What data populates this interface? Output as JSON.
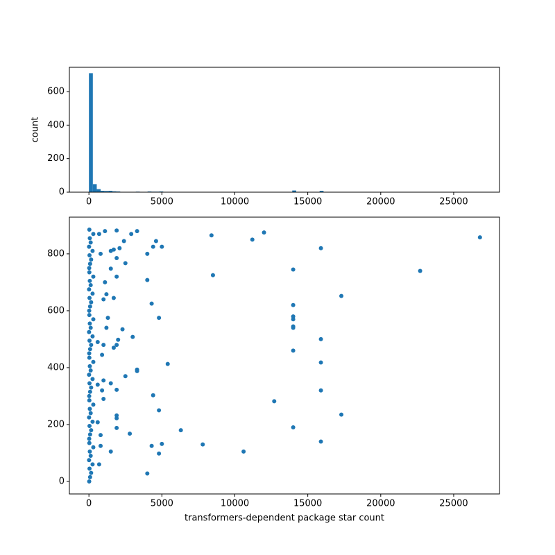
{
  "chart_data": [
    {
      "type": "histogram",
      "ylabel": "count",
      "color": "#1f77b4",
      "bins": [
        0,
        268,
        536,
        804,
        1072,
        1340,
        1608,
        1876,
        2144,
        2412,
        2680,
        2948,
        3216,
        3484,
        3752,
        4020,
        4288,
        4556,
        4824,
        5092,
        5360,
        5628,
        5896,
        6164,
        6432,
        6700,
        6968,
        7236,
        7504,
        7772,
        8040,
        8308,
        8576,
        8844,
        9112,
        9380,
        9648,
        9916,
        10184,
        10452,
        10720,
        10988,
        11256,
        11524,
        11792,
        12060,
        12328,
        12596,
        12864,
        13132,
        13400,
        13668,
        13936,
        14204,
        14472,
        14740,
        15008,
        15276,
        15544,
        15812,
        16080,
        16348,
        16616,
        16884,
        17152,
        17420,
        17688,
        17956,
        18224,
        18492,
        18760,
        19028,
        19296,
        19564,
        19832,
        20100,
        20368,
        20636,
        20904,
        21172,
        21440,
        21708,
        21976,
        22244,
        22512,
        22780,
        23048,
        23316,
        23584,
        23852,
        24120,
        24388,
        24656,
        24924,
        25192,
        25460,
        25728,
        25996,
        26264,
        26532,
        26800
      ],
      "values": [
        710,
        48,
        18,
        8,
        7,
        8,
        5,
        4,
        2,
        2,
        2,
        1,
        3,
        1,
        1,
        4,
        3,
        3,
        4,
        2,
        1,
        0,
        0,
        1,
        0,
        0,
        0,
        0,
        0,
        1,
        0,
        1,
        1,
        0,
        0,
        0,
        0,
        0,
        0,
        1,
        0,
        1,
        1,
        0,
        1,
        0,
        0,
        1,
        0,
        0,
        0,
        0,
        10,
        0,
        0,
        0,
        0,
        0,
        0,
        8,
        0,
        0,
        0,
        0,
        2,
        0,
        0,
        0,
        0,
        0,
        0,
        0,
        0,
        0,
        0,
        0,
        0,
        0,
        0,
        0,
        0,
        0,
        0,
        0,
        1,
        0,
        0,
        0,
        0,
        0,
        0,
        0,
        0,
        0,
        0,
        0,
        0,
        0,
        0,
        1
      ],
      "xlim": [
        -1340,
        28140
      ],
      "xticks": [
        0,
        5000,
        10000,
        15000,
        20000,
        25000
      ],
      "ylim": [
        0,
        745
      ],
      "yticks": [
        0,
        200,
        400,
        600
      ]
    },
    {
      "type": "scatter",
      "xlabel": "transformers-dependent package star count",
      "color": "#1f77b4",
      "x": [
        26800,
        22700,
        17300,
        17300,
        15900,
        15900,
        15900,
        15900,
        15900,
        14000,
        14000,
        14000,
        14000,
        14000,
        14000,
        14000,
        14000,
        12700,
        12000,
        11200,
        10600,
        8500,
        8400,
        7800,
        6300,
        5400,
        5000,
        5000,
        4800,
        4800,
        4800,
        4600,
        4400,
        4400,
        4300,
        4300,
        4000,
        4000,
        4000,
        3300,
        3300,
        3300,
        3000,
        2900,
        2800,
        2500,
        2500,
        2400,
        2300,
        2100,
        2000,
        1900,
        1900,
        1900,
        1900,
        1900,
        1900,
        1900,
        1900,
        1700,
        1700,
        1700,
        1500,
        1500,
        1500,
        1500,
        1300,
        1200,
        1200,
        1100,
        1100,
        1000,
        1000,
        1000,
        1000,
        900,
        900,
        800,
        800,
        800,
        700,
        700,
        600,
        600,
        600,
        20,
        80,
        150,
        40,
        250,
        10,
        120,
        60,
        300,
        30,
        20,
        80,
        150,
        40,
        250,
        10,
        120,
        60,
        300,
        30,
        20,
        80,
        150,
        40,
        250,
        10,
        120,
        60,
        300,
        30,
        20,
        80,
        150,
        40,
        250,
        10,
        120,
        60,
        300,
        30,
        20,
        80,
        150,
        40,
        250,
        10,
        120,
        60,
        300,
        30,
        20,
        80,
        150,
        40,
        250,
        10,
        120,
        60,
        300,
        30
      ],
      "values": [
        858,
        740,
        652,
        235,
        820,
        500,
        418,
        320,
        140,
        745,
        620,
        580,
        570,
        545,
        540,
        460,
        190,
        282,
        875,
        850,
        105,
        725,
        865,
        130,
        180,
        413,
        825,
        132,
        575,
        250,
        98,
        845,
        825,
        303,
        625,
        125,
        800,
        708,
        28,
        880,
        393,
        388,
        508,
        870,
        168,
        767,
        370,
        845,
        535,
        820,
        498,
        882,
        785,
        720,
        480,
        232,
        222,
        322,
        188,
        815,
        645,
        470,
        810,
        748,
        345,
        105,
        575,
        540,
        658,
        880,
        700,
        640,
        480,
        355,
        290,
        445,
        320,
        800,
        163,
        125,
        60,
        870,
        490,
        208,
        340,
        0,
        15,
        30,
        45,
        60,
        75,
        90,
        105,
        120,
        135,
        150,
        165,
        180,
        195,
        210,
        225,
        240,
        255,
        270,
        285,
        300,
        315,
        330,
        345,
        360,
        375,
        390,
        405,
        420,
        435,
        450,
        465,
        480,
        495,
        510,
        525,
        540,
        555,
        570,
        585,
        600,
        615,
        630,
        645,
        660,
        675,
        690,
        705,
        720,
        735,
        750,
        765,
        780,
        795,
        810,
        825,
        840,
        855,
        870,
        885
      ],
      "xlim": [
        -1340,
        28140
      ],
      "xticks": [
        0,
        5000,
        10000,
        15000,
        20000,
        25000
      ],
      "ylim": [
        -44,
        929
      ],
      "yticks": [
        0,
        200,
        400,
        600,
        800
      ]
    }
  ]
}
